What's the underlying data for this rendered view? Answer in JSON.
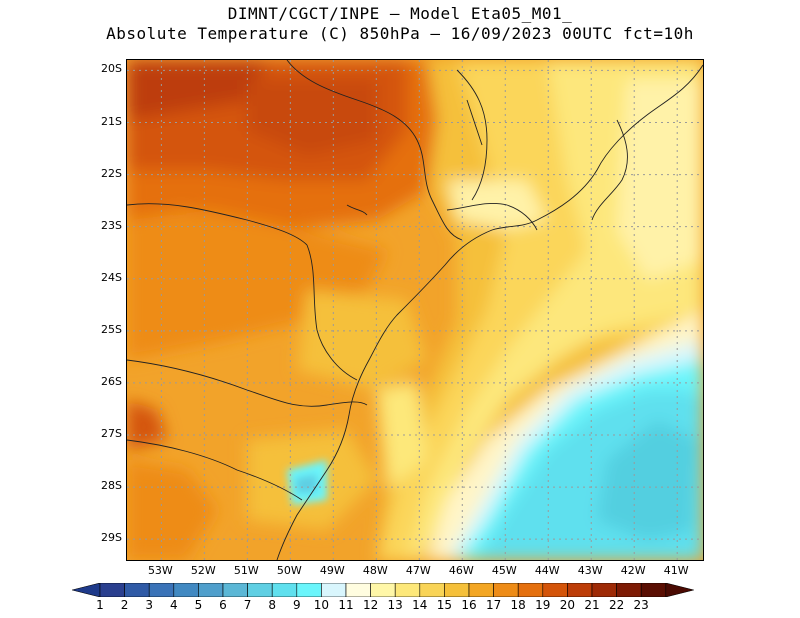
{
  "header": {
    "line1": "DIMNT/CGCT/INPE –  Model Eta05_M01_",
    "line2": "Absolute Temperature (C) 850hPa –  16/09/2023 00UTC fct=10h"
  },
  "map": {
    "lat_range": [
      -29.4,
      -19.8
    ],
    "lon_range": [
      -53.8,
      -40.4
    ],
    "lat_ticks": [
      "20S",
      "21S",
      "22S",
      "23S",
      "24S",
      "25S",
      "26S",
      "27S",
      "28S",
      "29S"
    ],
    "lat_values": [
      -20,
      -21,
      -22,
      -23,
      -24,
      -25,
      -26,
      -27,
      -28,
      -29
    ],
    "lon_ticks": [
      "53W",
      "52W",
      "51W",
      "50W",
      "49W",
      "48W",
      "47W",
      "46W",
      "45W",
      "44W",
      "43W",
      "42W",
      "41W"
    ],
    "lon_values": [
      -53,
      -52,
      -51,
      -50,
      -49,
      -48,
      -47,
      -46,
      -45,
      -44,
      -43,
      -42,
      -41
    ]
  },
  "colorbar": {
    "labels": [
      "1",
      "2",
      "3",
      "4",
      "5",
      "6",
      "7",
      "8",
      "9",
      "10",
      "11",
      "12",
      "13",
      "14",
      "15",
      "16",
      "17",
      "18",
      "19",
      "20",
      "21",
      "22",
      "23"
    ],
    "colors": [
      "#2a3f8f",
      "#2f5aa6",
      "#3a73b8",
      "#4189c2",
      "#4f9fcc",
      "#5bb7d6",
      "#5fcfe3",
      "#5fe0ee",
      "#6af5fb",
      "#d9f6fd",
      "#fffde0",
      "#fff7a8",
      "#fde87a",
      "#f9d457",
      "#f5c03a",
      "#f3a623",
      "#ee8c17",
      "#e5700e",
      "#d45409",
      "#bd3d07",
      "#9e2a06",
      "#7d1a04",
      "#5a0e02"
    ],
    "low_arrow_color": "#1e3a8a",
    "high_arrow_color": "#4a0a02"
  }
}
